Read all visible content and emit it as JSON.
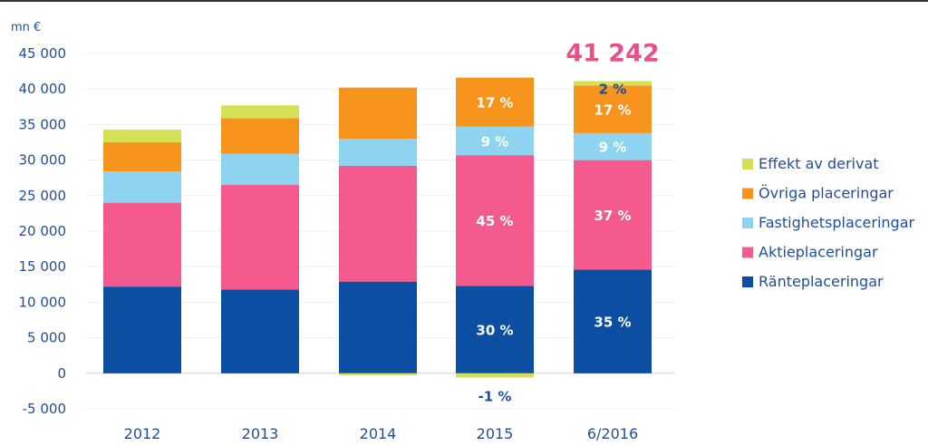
{
  "chart_data": {
    "type": "bar",
    "stacked": true,
    "unit_label": "mn €",
    "categories": [
      "2012",
      "2013",
      "2014",
      "2015",
      "6/2016"
    ],
    "ylim": [
      -5000,
      45000
    ],
    "yticks": [
      "-5 000",
      "0",
      "5 000",
      "10 000",
      "15 000",
      "20 000",
      "25 000",
      "30 000",
      "35 000",
      "40 000",
      "45 000"
    ],
    "ytick_values": [
      -5000,
      0,
      5000,
      10000,
      15000,
      20000,
      25000,
      30000,
      35000,
      40000,
      45000
    ],
    "grid": true,
    "legend_position": "right",
    "series": [
      {
        "name": "Ränteplaceringar",
        "color": "#0b4ea2",
        "values": [
          12200,
          11800,
          12900,
          12300,
          14600
        ]
      },
      {
        "name": "Aktieplaceringar",
        "color": "#f45a8d",
        "values": [
          11800,
          14700,
          16300,
          18400,
          15400
        ]
      },
      {
        "name": "Fastighetsplaceringar",
        "color": "#8ed4f0",
        "values": [
          4400,
          4400,
          3800,
          4000,
          3800
        ]
      },
      {
        "name": "Övriga placeringar",
        "color": "#f7941d",
        "values": [
          4100,
          5000,
          7200,
          6900,
          6700
        ]
      },
      {
        "name": "Effekt av derivat",
        "color": "#d4e157",
        "values": [
          1800,
          1800,
          -300,
          -600,
          600
        ]
      }
    ],
    "total_label": "41 242",
    "segment_labels": [
      {
        "category": 3,
        "series": 0,
        "text": "30 %",
        "color": "#ffffff"
      },
      {
        "category": 3,
        "series": 1,
        "text": "45 %",
        "color": "#ffffff"
      },
      {
        "category": 3,
        "series": 2,
        "text": "9 %",
        "color": "#ffffff"
      },
      {
        "category": 3,
        "series": 3,
        "text": "17 %",
        "color": "#ffffff"
      },
      {
        "category": 3,
        "series": 4,
        "text": "-1 %",
        "color": "#1f4e9c"
      },
      {
        "category": 4,
        "series": 0,
        "text": "35 %",
        "color": "#ffffff"
      },
      {
        "category": 4,
        "series": 1,
        "text": "37 %",
        "color": "#ffffff"
      },
      {
        "category": 4,
        "series": 2,
        "text": "9 %",
        "color": "#ffffff"
      },
      {
        "category": 4,
        "series": 3,
        "text": "17 %",
        "color": "#ffffff"
      },
      {
        "category": 4,
        "series": 4,
        "text": "2 %",
        "color": "#1f4e9c"
      }
    ]
  }
}
